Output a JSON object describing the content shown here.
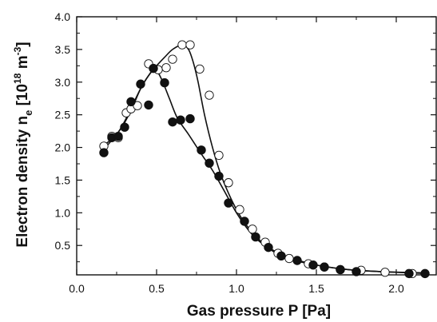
{
  "chart_data": {
    "type": "scatter",
    "title": "",
    "xlabel": "Gas pressure P [Pa]",
    "ylabel": {
      "prefix": "Electron density  n",
      "subscript": "e",
      "unit_open": " [10",
      "superscript_exp": "18",
      "unit_mid": " m",
      "superscript_unit": "-3",
      "unit_close": "]"
    },
    "xlim": [
      0.0,
      2.25
    ],
    "ylim": [
      0.05,
      4.0
    ],
    "xticks": [
      "0.0",
      "0.5",
      "1.0",
      "1.5",
      "2.0"
    ],
    "xtick_values": [
      0.0,
      0.5,
      1.0,
      1.5,
      2.0
    ],
    "yticks": [
      "0.5",
      "1.0",
      "1.5",
      "2.0",
      "2.5",
      "3.0",
      "3.5",
      "4.0"
    ],
    "ytick_values": [
      0.5,
      1.0,
      1.5,
      2.0,
      2.5,
      3.0,
      3.5,
      4.0
    ],
    "grid": false,
    "series": [
      {
        "marker": "filled-circle",
        "color": "#111111",
        "points": [
          [
            0.17,
            1.92
          ],
          [
            0.22,
            2.15
          ],
          [
            0.26,
            2.17
          ],
          [
            0.3,
            2.31
          ],
          [
            0.34,
            2.7
          ],
          [
            0.4,
            2.97
          ],
          [
            0.45,
            2.65
          ],
          [
            0.48,
            3.21
          ],
          [
            0.55,
            2.99
          ],
          [
            0.6,
            2.39
          ],
          [
            0.65,
            2.42
          ],
          [
            0.71,
            2.44
          ],
          [
            0.78,
            1.96
          ],
          [
            0.83,
            1.76
          ],
          [
            0.89,
            1.56
          ],
          [
            0.95,
            1.15
          ],
          [
            1.05,
            0.87
          ],
          [
            1.12,
            0.63
          ],
          [
            1.2,
            0.47
          ],
          [
            1.28,
            0.34
          ],
          [
            1.38,
            0.27
          ],
          [
            1.48,
            0.2
          ],
          [
            1.55,
            0.17
          ],
          [
            1.65,
            0.13
          ],
          [
            1.75,
            0.1
          ],
          [
            2.08,
            0.07
          ],
          [
            2.18,
            0.07
          ]
        ],
        "curve": [
          [
            0.17,
            1.97
          ],
          [
            0.25,
            2.2
          ],
          [
            0.3,
            2.38
          ],
          [
            0.35,
            2.62
          ],
          [
            0.4,
            2.9
          ],
          [
            0.45,
            3.1
          ],
          [
            0.49,
            3.2
          ],
          [
            0.53,
            3.05
          ],
          [
            0.58,
            2.75
          ],
          [
            0.63,
            2.45
          ],
          [
            0.7,
            2.2
          ],
          [
            0.78,
            1.9
          ],
          [
            0.85,
            1.65
          ],
          [
            0.92,
            1.35
          ],
          [
            1.0,
            1.0
          ],
          [
            1.08,
            0.72
          ],
          [
            1.15,
            0.55
          ],
          [
            1.25,
            0.4
          ],
          [
            1.35,
            0.3
          ],
          [
            1.5,
            0.2
          ],
          [
            1.7,
            0.13
          ],
          [
            1.9,
            0.1
          ],
          [
            2.2,
            0.08
          ]
        ]
      },
      {
        "marker": "open-circle",
        "color": "#111111",
        "points": [
          [
            0.17,
            2.02
          ],
          [
            0.22,
            2.17
          ],
          [
            0.26,
            2.15
          ],
          [
            0.31,
            2.53
          ],
          [
            0.34,
            2.59
          ],
          [
            0.38,
            2.64
          ],
          [
            0.45,
            3.28
          ],
          [
            0.51,
            3.19
          ],
          [
            0.56,
            3.22
          ],
          [
            0.6,
            3.35
          ],
          [
            0.66,
            3.57
          ],
          [
            0.71,
            3.57
          ],
          [
            0.77,
            3.2
          ],
          [
            0.83,
            2.8
          ],
          [
            0.89,
            1.88
          ],
          [
            0.95,
            1.46
          ],
          [
            1.02,
            1.05
          ],
          [
            1.1,
            0.75
          ],
          [
            1.18,
            0.55
          ],
          [
            1.26,
            0.38
          ],
          [
            1.33,
            0.3
          ],
          [
            1.45,
            0.22
          ],
          [
            1.55,
            0.17
          ],
          [
            1.65,
            0.13
          ],
          [
            1.78,
            0.12
          ],
          [
            1.93,
            0.09
          ],
          [
            2.1,
            0.07
          ]
        ],
        "curve": [
          [
            0.17,
            2.03
          ],
          [
            0.25,
            2.2
          ],
          [
            0.3,
            2.4
          ],
          [
            0.35,
            2.65
          ],
          [
            0.4,
            2.9
          ],
          [
            0.45,
            3.1
          ],
          [
            0.5,
            3.25
          ],
          [
            0.55,
            3.38
          ],
          [
            0.6,
            3.5
          ],
          [
            0.66,
            3.57
          ],
          [
            0.7,
            3.5
          ],
          [
            0.73,
            3.3
          ],
          [
            0.76,
            3.0
          ],
          [
            0.8,
            2.5
          ],
          [
            0.85,
            2.0
          ],
          [
            0.9,
            1.6
          ],
          [
            0.95,
            1.3
          ],
          [
            1.0,
            1.05
          ],
          [
            1.05,
            0.85
          ],
          [
            1.1,
            0.7
          ],
          [
            1.18,
            0.5
          ],
          [
            1.25,
            0.38
          ],
          [
            1.35,
            0.28
          ],
          [
            1.5,
            0.2
          ],
          [
            1.7,
            0.13
          ],
          [
            1.9,
            0.1
          ],
          [
            2.2,
            0.07
          ]
        ]
      }
    ]
  }
}
